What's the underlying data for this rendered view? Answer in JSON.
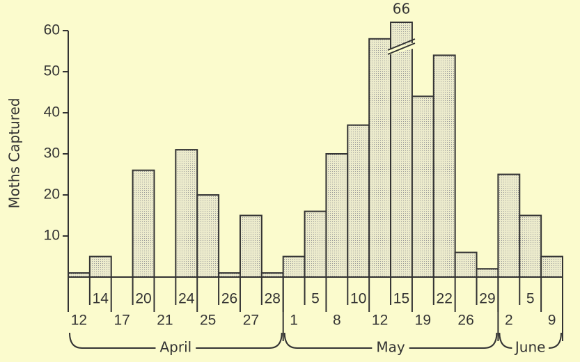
{
  "chart_data": {
    "type": "bar",
    "y_label": "Moths Captured",
    "groups": [
      {
        "label": "April",
        "categories": [
          "12",
          "14",
          "17",
          "20",
          "21",
          "24",
          "25",
          "26",
          "27",
          "28"
        ],
        "values": [
          1,
          5,
          0,
          26,
          0,
          31,
          20,
          1,
          15,
          1
        ],
        "value_labels": [
          null,
          null,
          null,
          null,
          null,
          null,
          null,
          null,
          null,
          null
        ]
      },
      {
        "label": "May",
        "categories": [
          "1",
          "5",
          "8",
          "10",
          "12",
          "15",
          "19",
          "22",
          "26",
          "29"
        ],
        "values": [
          5,
          16,
          30,
          37,
          58,
          66,
          44,
          54,
          6,
          2
        ],
        "value_labels": [
          null,
          null,
          null,
          null,
          null,
          "66",
          null,
          null,
          null,
          null
        ]
      },
      {
        "label": "June",
        "categories": [
          "2",
          "5",
          "9"
        ],
        "values": [
          25,
          15,
          5
        ],
        "value_labels": [
          null,
          null,
          null
        ]
      }
    ],
    "color": "#e2e2c4",
    "ylim": [
      0,
      60
    ],
    "yticks": [
      10,
      20,
      30,
      40,
      50,
      60
    ]
  }
}
